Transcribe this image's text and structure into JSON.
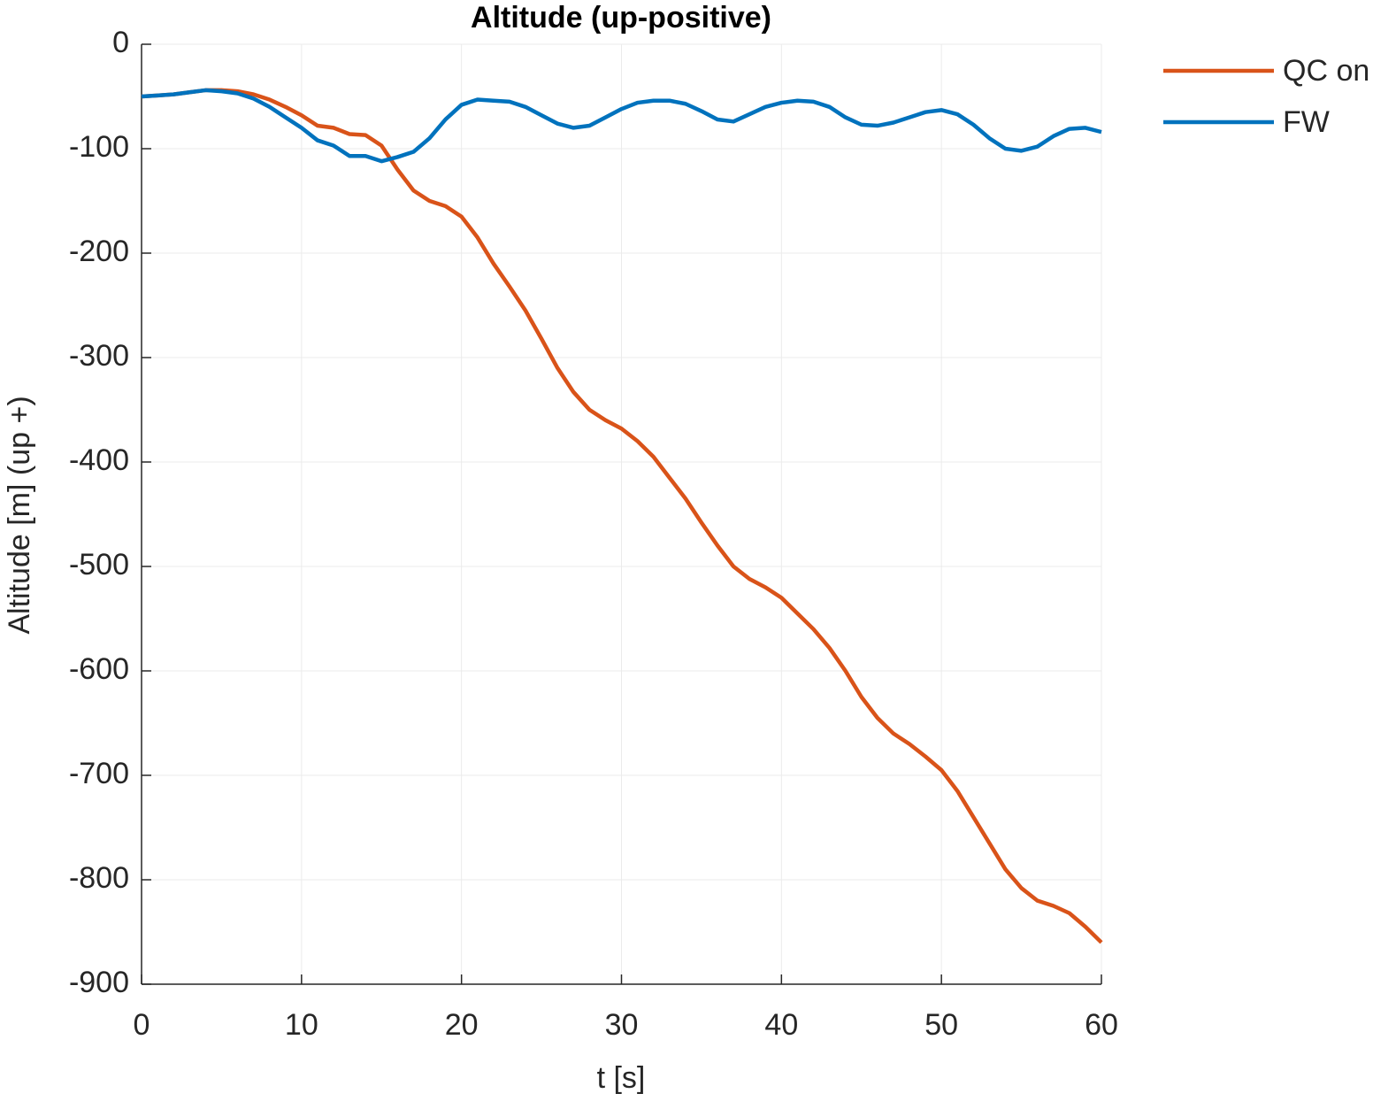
{
  "chart_data": {
    "type": "line",
    "title": "Altitude (up-positive)",
    "x_label": "t [s]",
    "y_label": "Altitude [m] (up +)",
    "x": [
      0,
      1,
      2,
      3,
      4,
      5,
      6,
      7,
      8,
      9,
      10,
      11,
      12,
      13,
      14,
      15,
      16,
      17,
      18,
      19,
      20,
      21,
      22,
      23,
      24,
      25,
      26,
      27,
      28,
      29,
      30,
      31,
      32,
      33,
      34,
      35,
      36,
      37,
      38,
      39,
      40,
      41,
      42,
      43,
      44,
      45,
      46,
      47,
      48,
      49,
      50,
      51,
      52,
      53,
      54,
      55,
      56,
      57,
      58,
      59,
      60
    ],
    "series": [
      {
        "name": "QC on",
        "color": "#d95319",
        "values": [
          -50,
          -49,
          -48,
          -46,
          -44,
          -44,
          -45,
          -48,
          -53,
          -60,
          -68,
          -78,
          -80,
          -86,
          -87,
          -97,
          -120,
          -140,
          -150,
          -155,
          -165,
          -185,
          -210,
          -232,
          -255,
          -282,
          -310,
          -333,
          -350,
          -360,
          -368,
          -380,
          -395,
          -415,
          -435,
          -458,
          -480,
          -500,
          -512,
          -520,
          -530,
          -545,
          -560,
          -578,
          -600,
          -625,
          -645,
          -660,
          -670,
          -682,
          -695,
          -715,
          -740,
          -765,
          -790,
          -808,
          -820,
          -825,
          -832,
          -845,
          -860
        ]
      },
      {
        "name": "FW",
        "color": "#0072bd",
        "values": [
          -50,
          -49,
          -48,
          -46,
          -44,
          -45,
          -47,
          -52,
          -60,
          -70,
          -80,
          -92,
          -97,
          -107,
          -107,
          -112,
          -108,
          -103,
          -90,
          -72,
          -58,
          -53,
          -54,
          -55,
          -60,
          -68,
          -76,
          -80,
          -78,
          -70,
          -62,
          -56,
          -54,
          -54,
          -57,
          -64,
          -72,
          -74,
          -67,
          -60,
          -56,
          -54,
          -55,
          -60,
          -70,
          -77,
          -78,
          -75,
          -70,
          -65,
          -63,
          -67,
          -77,
          -90,
          -100,
          -102,
          -98,
          -88,
          -81,
          -80,
          -84
        ]
      }
    ],
    "xlim": [
      0,
      60
    ],
    "xticks": [
      0,
      10,
      20,
      30,
      40,
      50,
      60
    ],
    "ylim": [
      -900,
      0
    ],
    "yticks": [
      -900,
      -800,
      -700,
      -600,
      -500,
      -400,
      -300,
      -200,
      -100,
      0
    ],
    "grid": true,
    "legend": "outside-top-right"
  }
}
